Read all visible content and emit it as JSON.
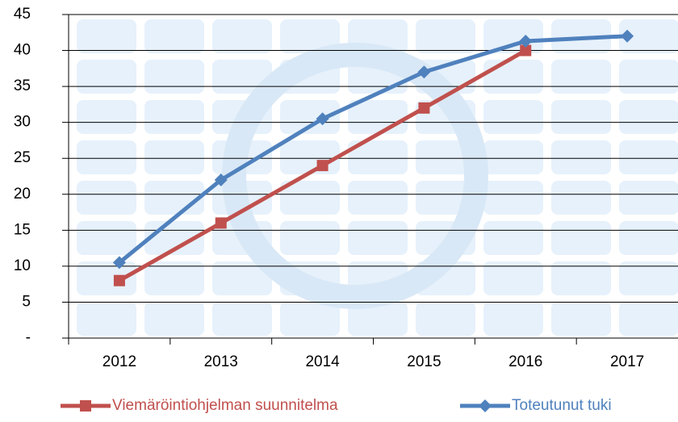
{
  "chart_data": {
    "type": "line",
    "categories": [
      "2012",
      "2013",
      "2014",
      "2015",
      "2016",
      "2017"
    ],
    "series": [
      {
        "name": "Viemäröintiohjelman suunnitelma",
        "color": "#c0504d",
        "marker": "square",
        "values": [
          8,
          16,
          24,
          32,
          40,
          null
        ]
      },
      {
        "name": "Toteutunut tuki",
        "color": "#4f81bd",
        "marker": "diamond",
        "values": [
          10.5,
          22,
          30.5,
          37,
          41.3,
          42
        ]
      }
    ],
    "ylim": [
      0,
      45
    ],
    "yticks": [
      {
        "value": 0,
        "label": "-"
      },
      5,
      10,
      15,
      20,
      25,
      30,
      35,
      40,
      45
    ],
    "grid": true,
    "legend": "bottom"
  }
}
